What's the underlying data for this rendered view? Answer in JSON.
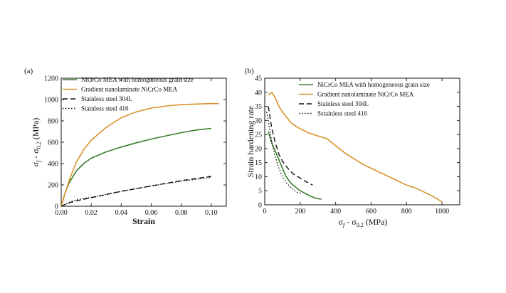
{
  "chart_data": [
    {
      "panel_label": "(a)",
      "type": "line",
      "xlabel": "Strain",
      "ylabel": "σ",
      "ylabel_sub1": "f",
      "ylabel_mid": " - σ",
      "ylabel_sub2": "0.2",
      "ylabel_unit": " (MPa)",
      "xlim": [
        0,
        0.11
      ],
      "ylim": [
        0,
        1200
      ],
      "xticks": [
        "0.00",
        "0.02",
        "0.04",
        "0.06",
        "0.08",
        "0.10"
      ],
      "yticks": [
        "0",
        "200",
        "400",
        "600",
        "800",
        "1000",
        "1200"
      ],
      "legend_position": "top-left",
      "grid": false,
      "series": [
        {
          "name": "NiCrCo MEA with homogeneous grain size",
          "color": "#3a7d2c",
          "style": "solid",
          "x": [
            0,
            0.002,
            0.005,
            0.01,
            0.015,
            0.02,
            0.03,
            0.04,
            0.05,
            0.06,
            0.07,
            0.08,
            0.09,
            0.1
          ],
          "y": [
            0,
            100,
            210,
            330,
            400,
            450,
            510,
            555,
            595,
            630,
            660,
            690,
            715,
            730
          ]
        },
        {
          "name": "Gradient nanolaminate NiCrCo MEA",
          "color": "#d8922a",
          "style": "solid",
          "x": [
            0,
            0.003,
            0.006,
            0.01,
            0.015,
            0.02,
            0.03,
            0.04,
            0.05,
            0.06,
            0.07,
            0.08,
            0.09,
            0.1,
            0.105
          ],
          "y": [
            0,
            140,
            270,
            410,
            530,
            620,
            740,
            830,
            885,
            920,
            940,
            952,
            958,
            962,
            962
          ]
        },
        {
          "name": "Stainless  steel 304L",
          "color": "#111111",
          "style": "dashed",
          "x": [
            0,
            0.005,
            0.01,
            0.02,
            0.03,
            0.04,
            0.06,
            0.08,
            0.1
          ],
          "y": [
            0,
            30,
            50,
            80,
            110,
            140,
            190,
            240,
            280
          ]
        },
        {
          "name": "Stainless  steel 416",
          "color": "#111111",
          "style": "dotted",
          "x": [
            0,
            0.005,
            0.01,
            0.02,
            0.03,
            0.04,
            0.06,
            0.08,
            0.1
          ],
          "y": [
            0,
            35,
            60,
            85,
            110,
            140,
            190,
            235,
            270
          ]
        }
      ]
    },
    {
      "panel_label": "(b)",
      "type": "line",
      "xlabel": "σ",
      "xlabel_sub1": "f",
      "xlabel_mid": " - σ",
      "xlabel_sub2": "0.2",
      "xlabel_unit": " (MPa)",
      "ylabel": "Strain hardening rate",
      "xlim": [
        0,
        1100
      ],
      "ylim": [
        0,
        45
      ],
      "xticks": [
        "0",
        "200",
        "400",
        "600",
        "800",
        "1000"
      ],
      "yticks": [
        "0",
        "5",
        "10",
        "15",
        "20",
        "25",
        "30",
        "35",
        "40",
        "45"
      ],
      "legend_position": "top-right",
      "grid": false,
      "series": [
        {
          "name": "NiCrCo MEA with homogeneous grain size",
          "color": "#3a7d2c",
          "style": "solid",
          "x": [
            20,
            40,
            60,
            80,
            100,
            120,
            150,
            180,
            200,
            230,
            260,
            290,
            320
          ],
          "y": [
            26,
            22,
            19,
            16,
            13,
            10,
            7.5,
            6,
            5,
            4,
            3,
            2.3,
            2
          ]
        },
        {
          "name": "Gradient nanolaminate NiCrCo MEA",
          "color": "#d8922a",
          "style": "solid",
          "x": [
            20,
            40,
            60,
            80,
            100,
            150,
            200,
            250,
            300,
            350,
            400,
            450,
            500,
            550,
            600,
            650,
            700,
            750,
            800,
            850,
            900,
            950,
            1000
          ],
          "y": [
            39,
            40,
            38,
            35,
            33,
            29,
            27,
            25.5,
            24.5,
            23.5,
            21,
            18.5,
            16.5,
            14.5,
            13,
            11.5,
            10,
            8.5,
            7,
            6,
            4.5,
            3,
            1
          ]
        },
        {
          "name": "Stainless  steel 304L",
          "color": "#111111",
          "style": "dashed",
          "x": [
            20,
            30,
            40,
            60,
            80,
            100,
            130,
            160,
            200,
            240,
            270
          ],
          "y": [
            35,
            31,
            27,
            22,
            18,
            15.5,
            13,
            11,
            9.5,
            8,
            7
          ]
        },
        {
          "name": "Sstainless steel 416",
          "color": "#111111",
          "style": "dotted",
          "x": [
            10,
            20,
            30,
            40,
            60,
            80,
            100,
            120,
            150,
            180,
            210
          ],
          "y": [
            33,
            30,
            26,
            22,
            17,
            13,
            10,
            8,
            6,
            4.5,
            4
          ]
        }
      ]
    }
  ]
}
